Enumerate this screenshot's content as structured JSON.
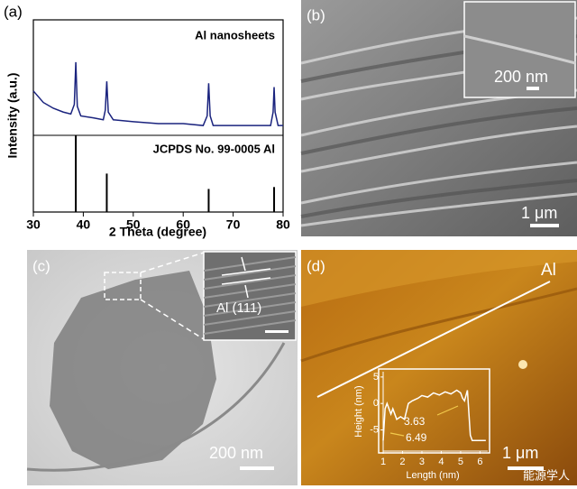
{
  "chart_data": [
    {
      "type": "line",
      "xlabel": "2 Theta (degree)",
      "ylabel": "Intensity (a.u.)",
      "xlim": [
        30,
        80
      ],
      "xticks": [
        30,
        40,
        50,
        60,
        70,
        80
      ],
      "ylim": [
        0,
        100
      ],
      "series": [
        {
          "name": "Al nanosheets",
          "color": "#1a237e",
          "style": "line",
          "x": [
            30,
            32,
            34,
            36,
            37.5,
            38.2,
            38.5,
            38.8,
            39.5,
            42,
            44,
            44.4,
            44.7,
            45,
            46,
            50,
            55,
            60,
            64,
            64.8,
            65.1,
            65.4,
            66,
            70,
            75,
            77.5,
            78,
            78.2,
            78.4,
            79,
            80
          ],
          "values": [
            63,
            57,
            54,
            52,
            51,
            56,
            78,
            55,
            50,
            49,
            48,
            53,
            68,
            52,
            48,
            47,
            46,
            46,
            45,
            50,
            67,
            50,
            45,
            45,
            45,
            45,
            52,
            65,
            52,
            45,
            45
          ]
        },
        {
          "name": "JCPDS No. 99-0005 Al",
          "color": "#000000",
          "style": "stick",
          "x": [
            38.5,
            44.7,
            65.1,
            78.2
          ],
          "values": [
            40,
            20,
            12,
            13
          ]
        }
      ]
    },
    {
      "type": "line",
      "xlabel": "Length (nm)",
      "ylabel": "Height (nm)",
      "xlim": [
        1,
        6.4
      ],
      "xticks": [
        1,
        2,
        3,
        4,
        5,
        6
      ],
      "ylim": [
        -9,
        6
      ],
      "yticks": [
        5,
        0,
        -5
      ],
      "series": [
        {
          "color": "#ffffff",
          "style": "line",
          "x": [
            1,
            1.1,
            1.2,
            1.4,
            1.5,
            1.7,
            1.9,
            2.1,
            2.3,
            2.5,
            2.8,
            3,
            3.3,
            3.6,
            3.9,
            4.2,
            4.5,
            4.8,
            5,
            5.1,
            5.2,
            5.35,
            5.5,
            5.6,
            6.3
          ],
          "values": [
            -7,
            -1,
            0,
            -2,
            -1,
            -3,
            -2.5,
            -3,
            0,
            0.5,
            1,
            1.5,
            1.2,
            2,
            1.6,
            2.2,
            1.8,
            2.5,
            2,
            1,
            0.5,
            2.5,
            -6,
            -7,
            -7
          ]
        }
      ],
      "annotations": [
        "3.63",
        "6.49"
      ]
    }
  ],
  "panels": {
    "a": {
      "label": "(a)"
    },
    "b": {
      "label": "(b)",
      "inset_scale": "200 nm",
      "scale": "1 μm"
    },
    "c": {
      "label": "(c)",
      "lattice": "Al (111)",
      "scale": "200 nm"
    },
    "d": {
      "label": "(d)",
      "material": "Al",
      "scale": "1 μm"
    }
  },
  "watermark": "能源学人"
}
